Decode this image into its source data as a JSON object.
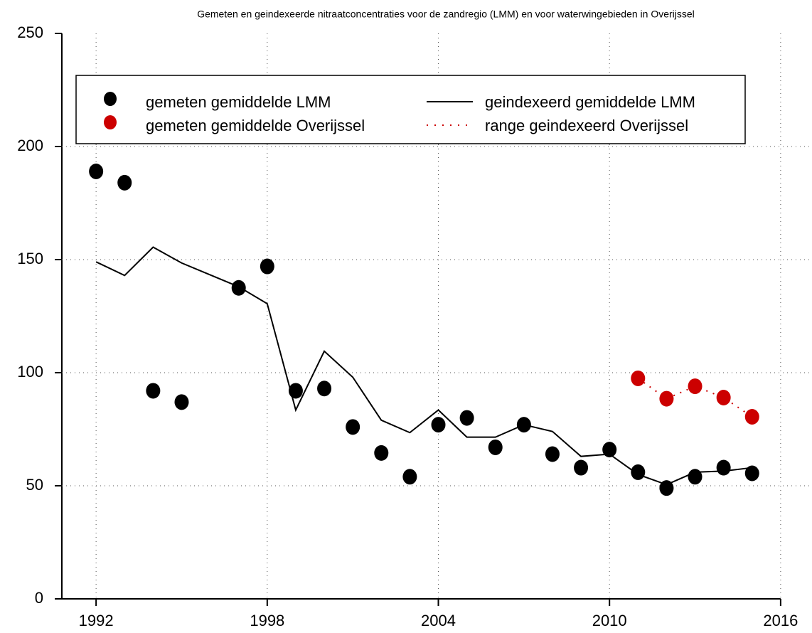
{
  "chart_data": {
    "type": "line",
    "title": "Gemeten en geindexeerde nitraatconcentraties voor de zandregio (LMM) en voor waterwingebieden in Overijssel",
    "xlim": [
      1990.8,
      2017.1
    ],
    "xticks": [
      1992,
      1998,
      2004,
      2010,
      2016
    ],
    "ylim": [
      0,
      250
    ],
    "yticks": [
      0,
      50,
      100,
      150,
      200,
      250
    ],
    "grid": true,
    "legend": "top",
    "series": [
      {
        "name": "gemeten gemiddelde LMM",
        "color": "#000000",
        "mode": "points",
        "x": [
          1992,
          1993,
          1994,
          1995,
          1997,
          1998,
          1999,
          2000,
          2001,
          2002,
          2003,
          2004,
          2005,
          2006,
          2007,
          2008,
          2009,
          2010,
          2011,
          2012,
          2013,
          2014,
          2015
        ],
        "values": [
          189,
          184,
          92,
          87,
          137.5,
          147,
          92,
          93,
          76,
          64.5,
          54,
          77,
          80,
          67,
          77,
          64,
          58,
          66,
          56,
          49,
          54,
          58,
          55.5
        ]
      },
      {
        "name": "geindexeerd gemiddelde LMM",
        "color": "#000000",
        "mode": "line",
        "x": [
          1992,
          1993,
          1994,
          1995,
          1997,
          1998,
          1999,
          2000,
          2001,
          2002,
          2003,
          2004,
          2005,
          2006,
          2007,
          2008,
          2009,
          2010,
          2011,
          2012,
          2013,
          2014,
          2015
        ],
        "values": [
          149,
          143,
          155.5,
          148.5,
          138,
          130.5,
          83.5,
          109.5,
          98,
          79,
          73.5,
          83.5,
          71.5,
          71.5,
          77,
          74,
          63,
          64,
          55,
          50.5,
          56,
          56.5,
          58
        ]
      },
      {
        "name": "gemeten gemiddelde Overijssel",
        "color": "#cc0000",
        "mode": "points",
        "x": [
          2011,
          2012,
          2013,
          2014,
          2015
        ],
        "values": [
          97.5,
          88.5,
          94,
          89,
          80.5
        ]
      },
      {
        "name": "range geindexeerd Overijssel",
        "color": "#cc0000",
        "mode": "dotted",
        "x": [
          2011,
          2012,
          2013,
          2014,
          2015
        ],
        "values": [
          97.5,
          88.5,
          94,
          89,
          80.5
        ]
      }
    ]
  }
}
